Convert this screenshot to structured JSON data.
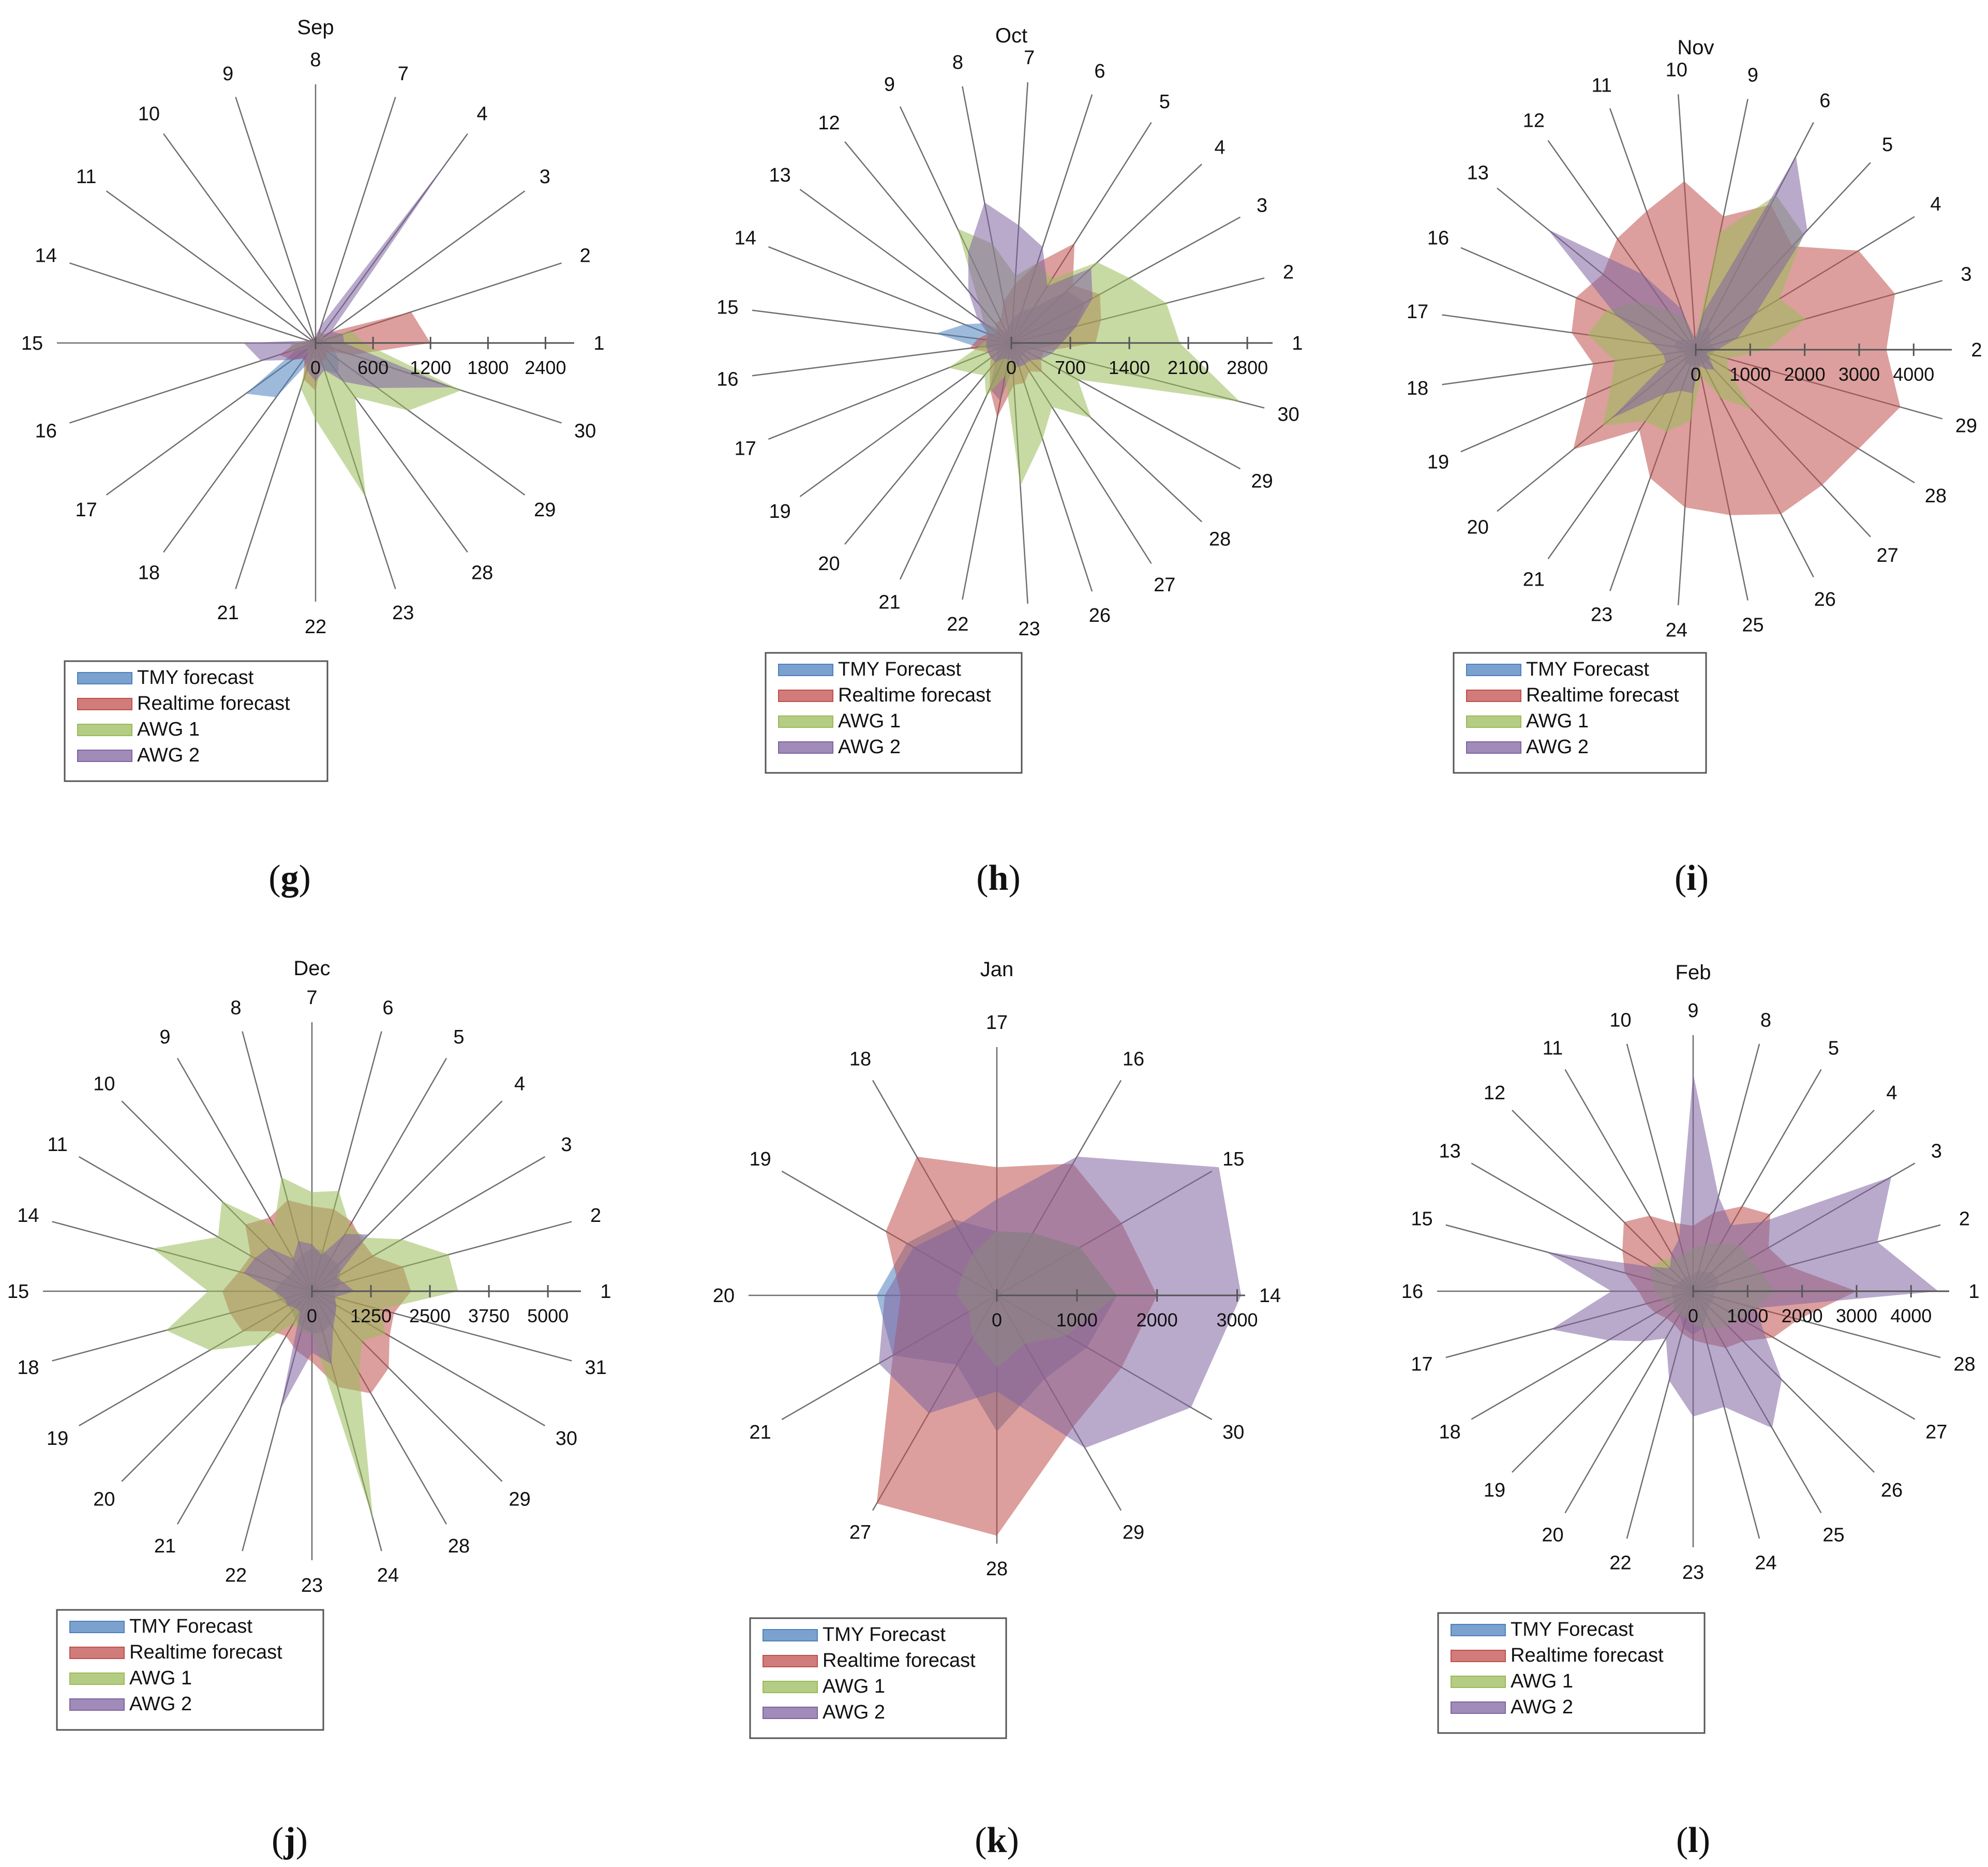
{
  "series_names": [
    "TMY Forecast",
    "Realtime forecast",
    "AWG 1",
    "AWG 2"
  ],
  "series_colors": [
    "#4f81bd",
    "#c0504d",
    "#9bbb59",
    "#8064a2"
  ],
  "chart_data": [
    {
      "type": "radar",
      "panel": "g",
      "caption": "(g)",
      "title": "Sep",
      "categories": [
        "1",
        "2",
        "3",
        "4",
        "7",
        "8",
        "9",
        "10",
        "11",
        "14",
        "15",
        "16",
        "17",
        "18",
        "21",
        "22",
        "23",
        "28",
        "29",
        "30"
      ],
      "rmax": 2700,
      "ticks": [
        0,
        600,
        1200,
        1800,
        2400
      ],
      "tick_labels": [
        "0",
        "600",
        "1200",
        "1800",
        "2400"
      ],
      "legend": [
        "TMY forecast",
        "Realtime forecast",
        "AWG 1",
        "AWG 2"
      ],
      "series": [
        {
          "name": "TMY forecast",
          "values": [
            150,
            100,
            80,
            60,
            60,
            50,
            20,
            20,
            20,
            20,
            80,
            200,
            900,
            700,
            200,
            150,
            300,
            400,
            300,
            200
          ]
        },
        {
          "name": "Realtime forecast",
          "values": [
            1200,
            1050,
            200,
            100,
            150,
            50,
            40,
            50,
            60,
            80,
            200,
            400,
            300,
            200,
            400,
            500,
            200,
            200,
            150,
            400
          ]
        },
        {
          "name": "AWG 1",
          "values": [
            500,
            400,
            100,
            150,
            100,
            50,
            20,
            30,
            40,
            60,
            250,
            300,
            100,
            150,
            500,
            800,
            1700,
            700,
            1200,
            1600
          ]
        },
        {
          "name": "AWG 2",
          "values": [
            300,
            300,
            200,
            2400,
            200,
            80,
            40,
            40,
            60,
            80,
            750,
            600,
            300,
            200,
            300,
            400,
            300,
            500,
            800,
            1500
          ]
        }
      ]
    },
    {
      "type": "radar",
      "panel": "h",
      "caption": "(h)",
      "title": "Oct",
      "categories": [
        "1",
        "2",
        "3",
        "4",
        "5",
        "6",
        "7",
        "8",
        "9",
        "12",
        "13",
        "14",
        "15",
        "16",
        "17",
        "19",
        "20",
        "21",
        "22",
        "23",
        "26",
        "27",
        "28",
        "29",
        "30"
      ],
      "rmax": 3100,
      "ticks": [
        0,
        700,
        1400,
        2100,
        2800
      ],
      "tick_labels": [
        "0",
        "700",
        "1400",
        "2100",
        "2800"
      ],
      "legend": [
        "TMY Forecast",
        "Realtime forecast",
        "AWG 1",
        "AWG 2"
      ],
      "series": [
        {
          "name": "TMY Forecast",
          "values": [
            600,
            800,
            1000,
            900,
            500,
            400,
            300,
            200,
            150,
            200,
            400,
            600,
            900,
            400,
            200,
            200,
            300,
            600,
            700,
            300,
            300,
            200,
            200,
            200,
            300
          ]
        },
        {
          "name": "Realtime forecast",
          "values": [
            1000,
            1100,
            1200,
            1000,
            1400,
            1000,
            700,
            500,
            300,
            300,
            200,
            300,
            400,
            500,
            300,
            300,
            400,
            600,
            900,
            500,
            500,
            400,
            500,
            400,
            400
          ]
        },
        {
          "name": "AWG 1",
          "values": [
            2000,
            1900,
            1600,
            1400,
            900,
            1000,
            800,
            1200,
            1500,
            600,
            400,
            300,
            300,
            400,
            800,
            600,
            500,
            700,
            400,
            1700,
            1200,
            900,
            1300,
            900,
            2800
          ]
        },
        {
          "name": "AWG 2",
          "values": [
            600,
            800,
            1100,
            1300,
            800,
            1200,
            1400,
            1700,
            1200,
            800,
            500,
            300,
            300,
            300,
            300,
            300,
            300,
            200,
            200,
            200,
            300,
            300,
            300,
            400,
            500
          ]
        }
      ]
    },
    {
      "type": "radar",
      "panel": "i",
      "caption": "(i)",
      "title": "Nov",
      "categories": [
        "2",
        "3",
        "4",
        "5",
        "6",
        "9",
        "10",
        "11",
        "12",
        "13",
        "16",
        "17",
        "18",
        "19",
        "20",
        "21",
        "23",
        "24",
        "25",
        "26",
        "27",
        "28",
        "29"
      ],
      "rmax": 4700,
      "ticks": [
        0,
        1000,
        2000,
        3000,
        4000
      ],
      "tick_labels": [
        "0",
        "1000",
        "2000",
        "3000",
        "4000"
      ],
      "legend": [
        "TMY Forecast",
        "Realtime forecast",
        "AWG 1",
        "AWG 2"
      ],
      "series": [
        {
          "name": "TMY Forecast",
          "values": [
            400,
            300,
            300,
            400,
            500,
            300,
            200,
            200,
            200,
            300,
            400,
            400,
            300,
            200,
            300,
            300,
            300,
            300,
            300,
            300,
            300,
            300,
            300
          ]
        },
        {
          "name": "Realtime forecast",
          "values": [
            3500,
            3800,
            3500,
            2600,
            3000,
            2500,
            3100,
            2700,
            2500,
            2200,
            2400,
            2300,
            1900,
            2200,
            2900,
            1800,
            2500,
            2900,
            3100,
            3400,
            3400,
            3500,
            3900
          ]
        },
        {
          "name": "AWG 1",
          "values": [
            1300,
            2100,
            1800,
            2900,
            3200,
            2200,
            200,
            600,
            900,
            1400,
            1800,
            2000,
            1500,
            1700,
            2200,
            1600,
            1600,
            1300,
            500,
            1000,
            1500,
            700,
            600
          ]
        },
        {
          "name": "AWG 2",
          "values": [
            400,
            800,
            1300,
            3000,
            4000,
            700,
            200,
            800,
            1700,
            3500,
            1600,
            800,
            600,
            600,
            2000,
            1000,
            800,
            800,
            300,
            400,
            500,
            300,
            200
          ]
        }
      ]
    },
    {
      "type": "radar",
      "panel": "j",
      "caption": "(j)",
      "title": "Dec",
      "categories": [
        "1",
        "2",
        "3",
        "4",
        "5",
        "6",
        "7",
        "8",
        "9",
        "10",
        "11",
        "14",
        "15",
        "18",
        "19",
        "20",
        "21",
        "22",
        "23",
        "24",
        "28",
        "29",
        "30",
        "31"
      ],
      "rmax": 5700,
      "ticks": [
        0,
        1250,
        2500,
        3750,
        5000
      ],
      "tick_labels": [
        "0",
        "1250",
        "2500",
        "3750",
        "5000"
      ],
      "legend": [
        "TMY Forecast",
        "Realtime forecast",
        "AWG 1",
        "AWG 2"
      ],
      "series": [
        {
          "name": "TMY Forecast",
          "values": [
            500,
            600,
            700,
            800,
            800,
            900,
            900,
            800,
            700,
            600,
            600,
            700,
            800,
            700,
            600,
            600,
            700,
            800,
            900,
            900,
            800,
            700,
            600,
            500
          ]
        },
        {
          "name": "Realtime forecast",
          "values": [
            2100,
            2000,
            1500,
            1500,
            1700,
            1800,
            1800,
            2000,
            1800,
            2000,
            1500,
            1600,
            1900,
            1800,
            1700,
            1200,
            1100,
            1300,
            1500,
            2100,
            2500,
            2300,
            1900,
            1800
          ]
        },
        {
          "name": "AWG 1",
          "values": [
            3100,
            3000,
            2200,
            1600,
            1600,
            2200,
            2100,
            2500,
            1600,
            2700,
            2300,
            3500,
            2200,
            3200,
            2500,
            1600,
            800,
            900,
            900,
            5000,
            2000,
            1500,
            1800,
            1500
          ]
        },
        {
          "name": "AWG 2",
          "values": [
            900,
            700,
            600,
            1700,
            1400,
            800,
            1000,
            1100,
            800,
            1300,
            1400,
            1500,
            800,
            600,
            600,
            500,
            500,
            2600,
            1300,
            1600,
            900,
            700,
            600,
            500
          ]
        }
      ]
    },
    {
      "type": "radar",
      "panel": "k",
      "caption": "(k)",
      "title": "Jan",
      "categories": [
        "14",
        "15",
        "16",
        "17",
        "18",
        "19",
        "20",
        "21",
        "27",
        "28",
        "29",
        "30"
      ],
      "rmax": 3100,
      "ticks": [
        0,
        1000,
        2000,
        3000
      ],
      "tick_labels": [
        "0",
        "1000",
        "2000",
        "3000"
      ],
      "legend": [
        "TMY Forecast",
        "Realtime forecast",
        "AWG 1",
        "AWG 2"
      ],
      "series": [
        {
          "name": "TMY Forecast",
          "values": [
            1500,
            1200,
            900,
            800,
            1100,
            1300,
            1500,
            1500,
            1000,
            1700,
            1200,
            1300
          ]
        },
        {
          "name": "Realtime forecast",
          "values": [
            2000,
            1800,
            1900,
            1600,
            2000,
            1600,
            1200,
            1500,
            3000,
            3000,
            1900,
            1800
          ]
        },
        {
          "name": "AWG 1",
          "values": [
            1500,
            1200,
            900,
            800,
            600,
            500,
            500,
            400,
            600,
            900,
            700,
            1000
          ]
        },
        {
          "name": "AWG 2",
          "values": [
            3050,
            3200,
            2000,
            1200,
            1000,
            1200,
            1400,
            1700,
            1700,
            1200,
            2200,
            2800
          ]
        }
      ]
    },
    {
      "type": "radar",
      "panel": "l",
      "caption": "(l)",
      "title": "Feb",
      "categories": [
        "1",
        "2",
        "3",
        "4",
        "5",
        "8",
        "9",
        "10",
        "11",
        "12",
        "13",
        "15",
        "16",
        "17",
        "18",
        "19",
        "20",
        "22",
        "23",
        "24",
        "25",
        "26",
        "27",
        "28"
      ],
      "rmax": 4700,
      "ticks": [
        0,
        1000,
        2000,
        3000,
        4000
      ],
      "tick_labels": [
        "0",
        "1000",
        "2000",
        "3000",
        "4000"
      ],
      "legend": [
        "TMY Forecast",
        "Realtime forecast",
        "AWG 1",
        "AWG 2"
      ],
      "series": [
        {
          "name": "TMY Forecast",
          "values": [
            400,
            500,
            500,
            500,
            400,
            400,
            300,
            300,
            300,
            300,
            300,
            400,
            400,
            400,
            400,
            500,
            500,
            700,
            800,
            700,
            500,
            400,
            400,
            400
          ]
        },
        {
          "name": "Realtime forecast",
          "values": [
            3000,
            1800,
            1600,
            2000,
            1800,
            1500,
            1200,
            1300,
            1600,
            1800,
            1500,
            1300,
            1000,
            900,
            800,
            700,
            700,
            800,
            900,
            1000,
            1200,
            1300,
            1700,
            2000
          ]
        },
        {
          "name": "AWG 1",
          "values": [
            1500,
            1300,
            1200,
            1200,
            1000,
            900,
            800,
            700,
            700,
            800,
            900,
            800,
            700,
            600,
            500,
            500,
            500,
            500,
            600,
            700,
            800,
            900,
            1000,
            1200
          ]
        },
        {
          "name": "AWG 2",
          "values": [
            4500,
            3500,
            4200,
            1800,
            1400,
            1800,
            4000,
            1000,
            800,
            600,
            900,
            2800,
            1500,
            2700,
            1800,
            1300,
            1000,
            1700,
            2300,
            2200,
            2900,
            2300,
            1500,
            1200
          ]
        }
      ]
    }
  ]
}
